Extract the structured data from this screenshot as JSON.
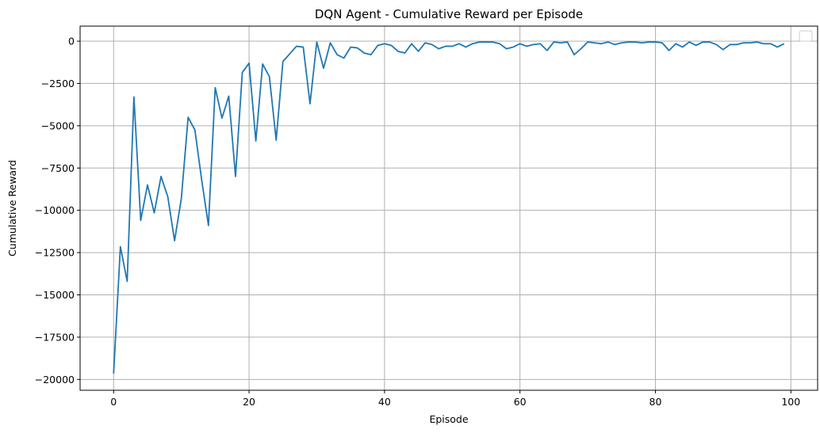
{
  "chart_data": {
    "type": "line",
    "title": "DQN Agent - Cumulative Reward per Episode",
    "xlabel": "Episode",
    "ylabel": "Cumulative Reward",
    "xlim": [
      -4.95,
      103.95
    ],
    "ylim": [
      -20640,
      890
    ],
    "xticks": [
      0,
      20,
      40,
      60,
      80,
      100
    ],
    "yticks": [
      0,
      -2500,
      -5000,
      -7500,
      -10000,
      -12500,
      -15000,
      -17500,
      -20000
    ],
    "grid": true,
    "legend": "top-right, empty",
    "colors": {
      "line": "#1f77b4",
      "grid": "#b0b0b0"
    },
    "series": [
      {
        "x": [
          0,
          1,
          2,
          3,
          4,
          5,
          6,
          7,
          8,
          9,
          10,
          11,
          12,
          13,
          14,
          15,
          16,
          17,
          18,
          19,
          20,
          21,
          22,
          23,
          24,
          25,
          26,
          27,
          28,
          29,
          30,
          31,
          32,
          33,
          34,
          35,
          36,
          37,
          38,
          39,
          40,
          41,
          42,
          43,
          44,
          45,
          46,
          47,
          48,
          49,
          50,
          51,
          52,
          53,
          54,
          55,
          56,
          57,
          58,
          59,
          60,
          61,
          62,
          63,
          64,
          65,
          66,
          67,
          68,
          69,
          70,
          71,
          72,
          73,
          74,
          75,
          76,
          77,
          78,
          79,
          80,
          81,
          82,
          83,
          84,
          85,
          86,
          87,
          88,
          89,
          90,
          91,
          92,
          93,
          94,
          95,
          96,
          97,
          98,
          99
        ],
        "values": [
          -19650,
          -12150,
          -14200,
          -3300,
          -10600,
          -8500,
          -10150,
          -8000,
          -9200,
          -11800,
          -9300,
          -4500,
          -5250,
          -8200,
          -10900,
          -2750,
          -4550,
          -3250,
          -8000,
          -1850,
          -1300,
          -5900,
          -1350,
          -2100,
          -5850,
          -1200,
          -750,
          -300,
          -350,
          -3700,
          -50,
          -1600,
          -100,
          -800,
          -1000,
          -350,
          -400,
          -700,
          -800,
          -250,
          -150,
          -250,
          -600,
          -700,
          -150,
          -600,
          -100,
          -200,
          -450,
          -300,
          -300,
          -150,
          -350,
          -150,
          -50,
          -50,
          -50,
          -150,
          -450,
          -350,
          -150,
          -300,
          -200,
          -150,
          -550,
          -50,
          -100,
          -50,
          -800,
          -450,
          -50,
          -100,
          -150,
          -50,
          -200,
          -100,
          -50,
          -50,
          -100,
          -50,
          -50,
          -100,
          -550,
          -150,
          -350,
          -50,
          -250,
          -50,
          -50,
          -200,
          -500,
          -200,
          -200,
          -100,
          -100,
          -50,
          -150,
          -150,
          -350,
          -150
        ]
      }
    ]
  }
}
